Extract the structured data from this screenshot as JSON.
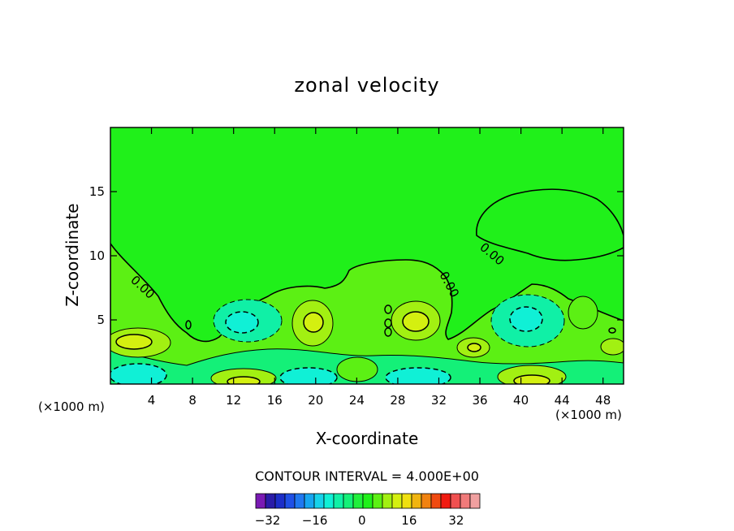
{
  "chart_data": {
    "type": "heatmap",
    "title": "zonal velocity",
    "xlabel": "X-coordinate",
    "ylabel": "Z-coordinate",
    "x_ticks": [
      4,
      8,
      12,
      16,
      20,
      24,
      28,
      32,
      36,
      40,
      44,
      48
    ],
    "y_ticks": [
      5,
      10,
      15
    ],
    "xlim": [
      0,
      50
    ],
    "ylim": [
      0,
      20
    ],
    "x_unit_label_left": "(×1000 m)",
    "x_unit_label_right": "(×1000 m)",
    "zero_contour_labels": [
      "0.00",
      "0.00",
      "0.00"
    ],
    "contour_interval_text": "CONTOUR INTERVAL = 4.000E+00",
    "colorbar": {
      "colors": [
        "#7a1ab4",
        "#2a1ca8",
        "#1c2ec8",
        "#1f50e6",
        "#1f78f0",
        "#16a6f0",
        "#16d2ea",
        "#10f0d6",
        "#10f0a6",
        "#14f078",
        "#20f03c",
        "#20f01a",
        "#5cf014",
        "#a2f012",
        "#d4f010",
        "#f0e010",
        "#f0b410",
        "#f08210",
        "#f04a10",
        "#f01a10",
        "#f05050",
        "#f07a7a",
        "#f0a0a0"
      ],
      "tick_values": [
        -32,
        -16,
        0,
        16,
        32
      ],
      "tick_labels": [
        "−32",
        "−16",
        "0",
        "16",
        "32"
      ],
      "vmin": -36,
      "vmax": 40
    },
    "colors": {
      "background_field": "#20f01a",
      "weak_positive": "#5cf014",
      "moderate_positive": "#a2f012",
      "strong_positive": "#d4f010",
      "near_zero_positive": "#14f078",
      "weak_negative": "#10f0a6",
      "moderate_negative": "#10f0d6",
      "strong_negative": "#16d2ea"
    }
  }
}
